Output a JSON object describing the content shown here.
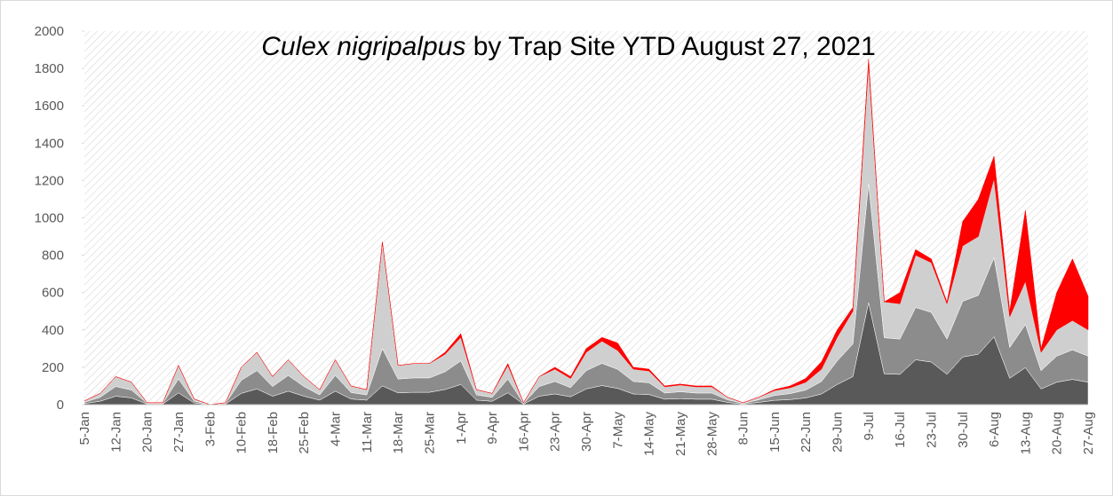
{
  "chart_data": {
    "type": "area",
    "stacked": true,
    "title": {
      "species": "Culex nigripalpus",
      "rest": " by Trap Site YTD August 27, 2021"
    },
    "categories": [
      "5-Jan",
      null,
      "12-Jan",
      null,
      "20-Jan",
      null,
      "27-Jan",
      null,
      "3-Feb",
      null,
      "10-Feb",
      null,
      "18-Feb",
      null,
      "25-Feb",
      null,
      "4-Mar",
      null,
      "11-Mar",
      null,
      "18-Mar",
      null,
      "25-Mar",
      null,
      "1-Apr",
      null,
      "9-Apr",
      null,
      "16-Apr",
      null,
      "23-Apr",
      null,
      "30-Apr",
      null,
      "7-May",
      null,
      "14-May",
      null,
      "21-May",
      null,
      "28-May",
      null,
      "8-Jun",
      null,
      "15-Jun",
      null,
      "22-Jun",
      null,
      "29-Jun",
      null,
      "9-Jul",
      null,
      "16-Jul",
      null,
      "23-Jul",
      null,
      "30-Jul",
      null,
      "6-Aug",
      null,
      "13-Aug",
      null,
      "20-Aug",
      null,
      "27-Aug"
    ],
    "series": [
      {
        "color": "#595959",
        "values": [
          6,
          18,
          45,
          36,
          3,
          3,
          63,
          9,
          0,
          3,
          60,
          84,
          45,
          72,
          45,
          24,
          72,
          30,
          24,
          100,
          63,
          66,
          66,
          81,
          108,
          24,
          18,
          63,
          3,
          45,
          57,
          42,
          84,
          102,
          87,
          57,
          54,
          29,
          32,
          29,
          29,
          12,
          3,
          12,
          23,
          27,
          36,
          57,
          108,
          150,
          546,
          165,
          162,
          240,
          228,
          162,
          255,
          270,
          363,
          141,
          198,
          84,
          120,
          135,
          120
        ]
      },
      {
        "color": "#8c8c8c",
        "values": [
          7,
          21,
          52,
          42,
          4,
          4,
          74,
          10,
          0,
          4,
          70,
          98,
          52,
          84,
          52,
          28,
          84,
          35,
          28,
          200,
          74,
          77,
          77,
          95,
          126,
          28,
          21,
          74,
          4,
          52,
          67,
          49,
          98,
          119,
          102,
          67,
          63,
          33,
          37,
          33,
          33,
          14,
          4,
          14,
          26,
          32,
          42,
          67,
          126,
          175,
          637,
          193,
          189,
          280,
          266,
          189,
          298,
          315,
          424,
          165,
          231,
          98,
          140,
          158,
          140
        ]
      },
      {
        "color": "#cfcfcf",
        "values": [
          7,
          21,
          53,
          42,
          3,
          3,
          73,
          11,
          0,
          3,
          70,
          98,
          53,
          84,
          53,
          28,
          84,
          35,
          28,
          570,
          73,
          77,
          77,
          94,
          126,
          28,
          21,
          73,
          3,
          53,
          66,
          49,
          98,
          119,
          101,
          66,
          63,
          33,
          36,
          33,
          33,
          14,
          3,
          14,
          26,
          31,
          42,
          66,
          126,
          175,
          637,
          192,
          189,
          280,
          266,
          189,
          297,
          315,
          423,
          164,
          231,
          98,
          140,
          157,
          140
        ]
      },
      {
        "color": "#ff0000",
        "values": [
          0,
          0,
          0,
          0,
          0,
          0,
          0,
          0,
          0,
          0,
          0,
          0,
          0,
          0,
          0,
          0,
          0,
          0,
          0,
          0,
          0,
          0,
          0,
          10,
          20,
          0,
          0,
          10,
          0,
          0,
          10,
          10,
          20,
          20,
          40,
          10,
          10,
          5,
          5,
          5,
          5,
          0,
          0,
          0,
          5,
          10,
          20,
          40,
          40,
          20,
          30,
          0,
          60,
          30,
          20,
          10,
          130,
          200,
          120,
          30,
          380,
          20,
          200,
          330,
          180
        ]
      }
    ],
    "ylim": [
      0,
      2000
    ],
    "yticks": [
      0,
      200,
      400,
      600,
      800,
      1000,
      1200,
      1400,
      1600,
      1800,
      2000
    ]
  }
}
